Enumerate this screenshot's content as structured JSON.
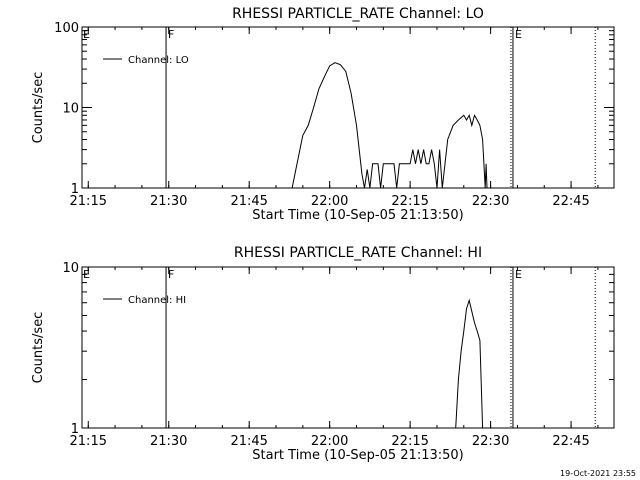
{
  "chart_data": [
    {
      "type": "line",
      "title": "RHESSI PARTICLE_RATE Channel: LO",
      "xlabel": "Start Time (10-Sep-05 21:13:50)",
      "ylabel": "Counts/sec",
      "yscale": "log",
      "xlim": [
        "21:13:50",
        "22:53:00"
      ],
      "ylim": [
        1,
        100
      ],
      "x_ticks": [
        "21:15",
        "21:30",
        "21:45",
        "22:00",
        "22:15",
        "22:30",
        "22:45"
      ],
      "y_ticks": [
        "1",
        "10",
        "100"
      ],
      "legend": {
        "label": "Channel: LO",
        "position": "top-left"
      },
      "flags": [
        {
          "label": "E",
          "time": "21:13:50",
          "line": "none"
        },
        {
          "label": "F",
          "time": "21:29:30",
          "line": "solid"
        },
        {
          "label": "E",
          "time": "22:34:10",
          "line": "dotted-solid"
        },
        {
          "label": "",
          "time": "22:49:30",
          "line": "dotted"
        }
      ],
      "series": [
        {
          "name": "Channel: LO",
          "points": [
            [
              "21:53:00",
              1
            ],
            [
              "21:55:00",
              4.5
            ],
            [
              "21:56:00",
              6
            ],
            [
              "21:57:00",
              10
            ],
            [
              "21:58:00",
              17
            ],
            [
              "21:59:00",
              24
            ],
            [
              "22:00:00",
              33
            ],
            [
              "22:01:00",
              36
            ],
            [
              "22:02:00",
              34
            ],
            [
              "22:03:00",
              28
            ],
            [
              "22:04:00",
              15
            ],
            [
              "22:05:00",
              6
            ],
            [
              "22:05:30",
              3
            ],
            [
              "22:06:00",
              1.5
            ],
            [
              "22:06:30",
              1
            ],
            [
              "22:07:00",
              1.7
            ],
            [
              "22:07:30",
              1
            ],
            [
              "22:08:00",
              2
            ],
            [
              "22:09:00",
              2
            ],
            [
              "22:09:30",
              1
            ],
            [
              "22:10:00",
              2
            ],
            [
              "22:11:00",
              2
            ],
            [
              "22:12:00",
              2
            ],
            [
              "22:12:30",
              1
            ],
            [
              "22:13:00",
              2
            ],
            [
              "22:14:00",
              2
            ],
            [
              "22:15:00",
              2
            ],
            [
              "22:15:30",
              3
            ],
            [
              "22:16:00",
              2
            ],
            [
              "22:16:30",
              3
            ],
            [
              "22:17:00",
              2
            ],
            [
              "22:17:30",
              3
            ],
            [
              "22:18:00",
              2
            ],
            [
              "22:18:30",
              2
            ],
            [
              "22:19:00",
              3
            ],
            [
              "22:19:30",
              2
            ],
            [
              "22:20:00",
              1
            ],
            [
              "22:20:30",
              3
            ],
            [
              "22:21:00",
              1
            ],
            [
              "22:21:30",
              2
            ],
            [
              "22:22:00",
              4
            ],
            [
              "22:23:00",
              6
            ],
            [
              "22:24:00",
              7
            ],
            [
              "22:25:00",
              8
            ],
            [
              "22:25:30",
              7
            ],
            [
              "22:26:00",
              8
            ],
            [
              "22:26:30",
              6
            ],
            [
              "22:27:00",
              8
            ],
            [
              "22:27:30",
              7
            ],
            [
              "22:28:00",
              6
            ],
            [
              "22:28:30",
              4
            ],
            [
              "22:29:00",
              1
            ],
            [
              "22:29:10",
              2
            ],
            [
              "22:29:20",
              1
            ]
          ]
        }
      ]
    },
    {
      "type": "line",
      "title": "RHESSI PARTICLE_RATE Channel: HI",
      "xlabel": "Start Time (10-Sep-05 21:13:50)",
      "ylabel": "Counts/sec",
      "yscale": "log",
      "xlim": [
        "21:13:50",
        "22:53:00"
      ],
      "ylim": [
        1,
        10
      ],
      "x_ticks": [
        "21:15",
        "21:30",
        "21:45",
        "22:00",
        "22:15",
        "22:30",
        "22:45"
      ],
      "y_ticks": [
        "1",
        "10"
      ],
      "legend": {
        "label": "Channel: HI",
        "position": "top-left"
      },
      "flags": [
        {
          "label": "E",
          "time": "21:13:50",
          "line": "none"
        },
        {
          "label": "F",
          "time": "21:29:30",
          "line": "solid"
        },
        {
          "label": "E",
          "time": "22:34:10",
          "line": "dotted-solid"
        },
        {
          "label": "",
          "time": "22:49:30",
          "line": "dotted"
        }
      ],
      "series": [
        {
          "name": "Channel: HI",
          "points": [
            [
              "22:23:30",
              1
            ],
            [
              "22:24:00",
              2
            ],
            [
              "22:24:30",
              3
            ],
            [
              "22:25:00",
              4
            ],
            [
              "22:25:30",
              5.5
            ],
            [
              "22:26:00",
              6.2
            ],
            [
              "22:26:30",
              5.3
            ],
            [
              "22:27:00",
              4.5
            ],
            [
              "22:27:30",
              4
            ],
            [
              "22:28:00",
              3.5
            ],
            [
              "22:28:30",
              1
            ]
          ]
        }
      ]
    }
  ],
  "footer": {
    "timestamp": "19-Oct-2021 23:55"
  }
}
